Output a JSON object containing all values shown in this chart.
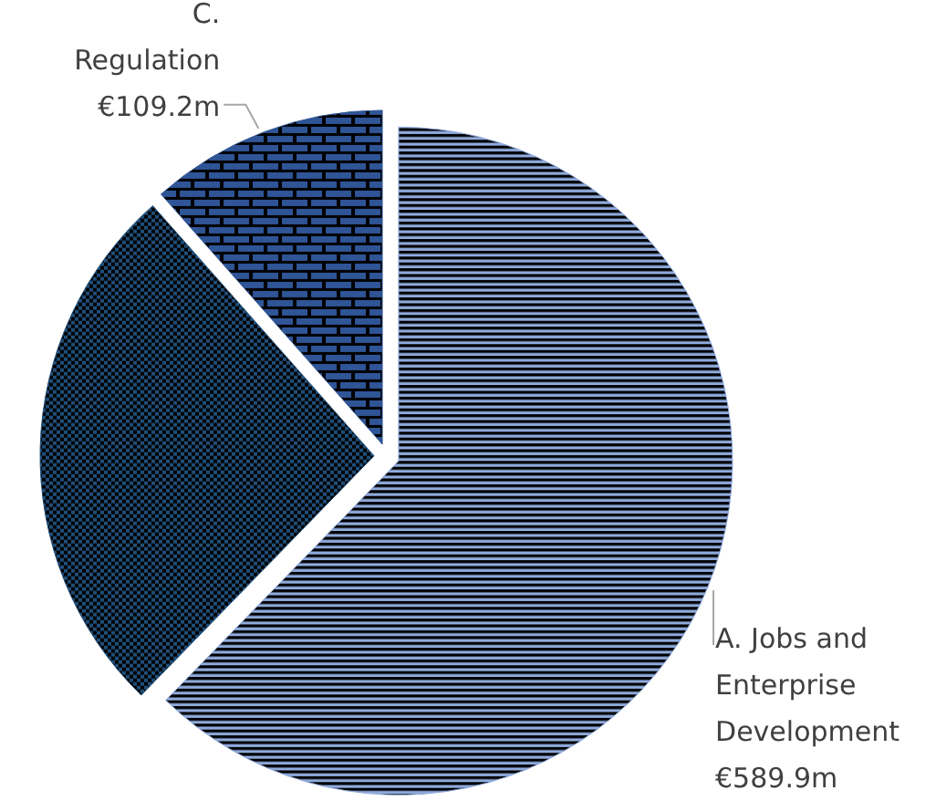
{
  "chart_data": {
    "type": "pie",
    "categories": [
      "A. Jobs and Enterprise Development",
      null,
      "C. Regulation"
    ],
    "values": [
      589.9,
      248,
      109.2
    ],
    "value_labels": [
      "€589.9m",
      null,
      "€109.2m"
    ],
    "colors": [
      "#8faadc",
      "#1f4e79",
      "#2f5597"
    ]
  }
}
